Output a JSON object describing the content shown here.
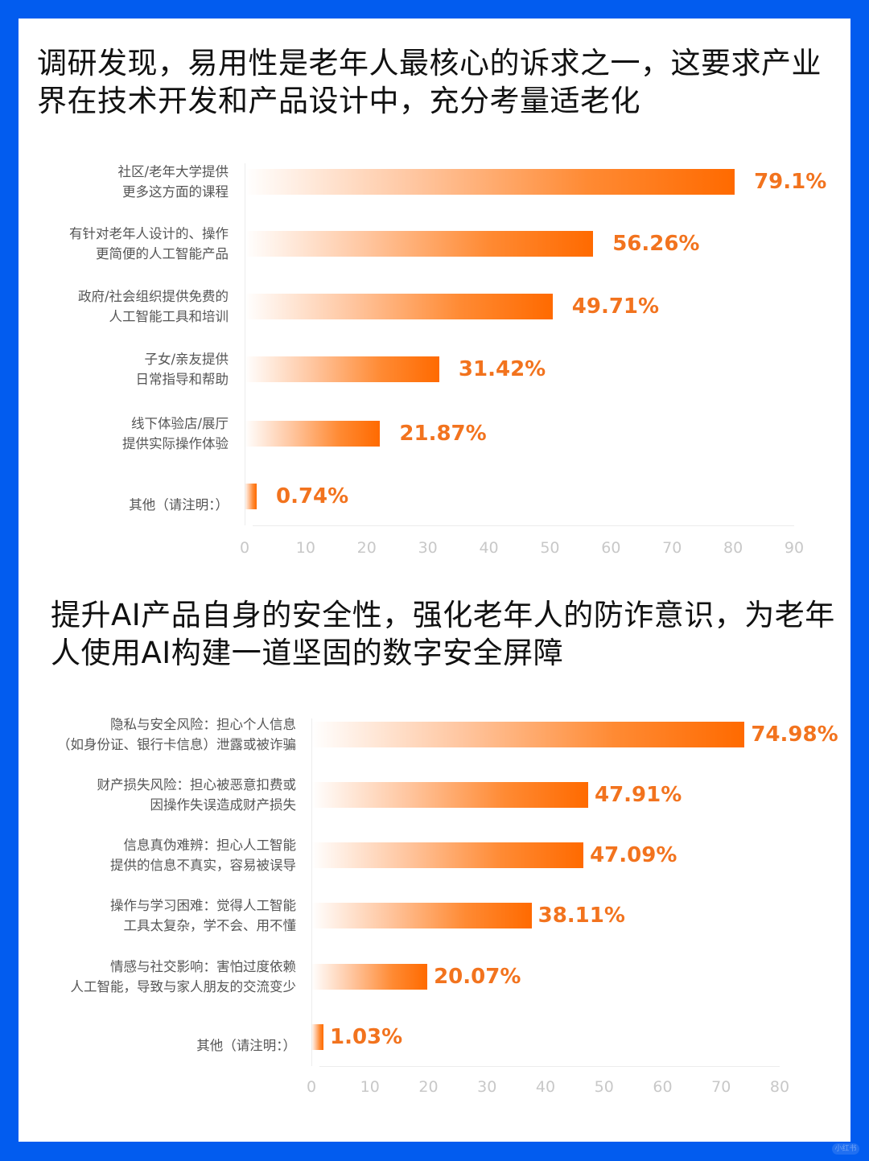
{
  "colors": {
    "frame": "#025cef",
    "bar": "#ff6a00",
    "value_label": "#f2731e",
    "tick": "#c8c8c8",
    "category": "#555555"
  },
  "section1": {
    "headline": "调研发现，易用性是老年人最核心的诉求之一，这要求产业界在技术开发和产品设计中，充分考量适老化"
  },
  "section2": {
    "headline": "提升AI产品自身的安全性，强化老年人的防诈意识，为老年人使用AI构建一道坚固的数字安全屏障"
  },
  "watermark": "小红书",
  "chart_data": [
    {
      "type": "bar",
      "orientation": "horizontal",
      "title": "调研发现，易用性是老年人最核心的诉求之一，这要求产业界在技术开发和产品设计中，充分考量适老化",
      "categories": [
        "社区/老年大学提供\n更多这方面的课程",
        "有针对老年人设计的、操作\n更简便的人工智能产品",
        "政府/社会组织提供免费的\n人工智能工具和培训",
        "子女/亲友提供\n日常指导和帮助",
        "线下体验店/展厅\n提供实际操作体验",
        "其他（请注明：）"
      ],
      "values": [
        79.1,
        56.26,
        49.71,
        31.42,
        21.87,
        0.74
      ],
      "value_labels": [
        "79.1%",
        "56.26%",
        "49.71%",
        "31.42%",
        "21.87%",
        "0.74%"
      ],
      "xticks": [
        "0",
        "10",
        "20",
        "30",
        "40",
        "50",
        "60",
        "70",
        "80",
        "90"
      ],
      "xlim": [
        0,
        90
      ],
      "xlabel": "",
      "ylabel": "",
      "grid": false,
      "legend": null
    },
    {
      "type": "bar",
      "orientation": "horizontal",
      "title": "提升AI产品自身的安全性，强化老年人的防诈意识，为老年人使用AI构建一道坚固的数字安全屏障",
      "categories": [
        "隐私与安全风险：担心个人信息\n（如身份证、银行卡信息）泄露或被诈骗",
        "财产损失风险：担心被恶意扣费或\n因操作失误造成财产损失",
        "信息真伪难辨：担心人工智能\n提供的信息不真实，容易被误导",
        "操作与学习困难：觉得人工智能\n工具太复杂，学不会、用不懂",
        "情感与社交影响：害怕过度依赖\n人工智能，导致与家人朋友的交流变少",
        "其他（请注明：）"
      ],
      "values": [
        74.98,
        47.91,
        47.09,
        38.11,
        20.07,
        1.03
      ],
      "value_labels": [
        "74.98%",
        "47.91%",
        "47.09%",
        "38.11%",
        "20.07%",
        "1.03%"
      ],
      "xticks": [
        "0",
        "10",
        "20",
        "30",
        "40",
        "50",
        "60",
        "70",
        "80"
      ],
      "xlim": [
        0,
        80
      ],
      "xlabel": "",
      "ylabel": "",
      "grid": false,
      "legend": null
    }
  ]
}
